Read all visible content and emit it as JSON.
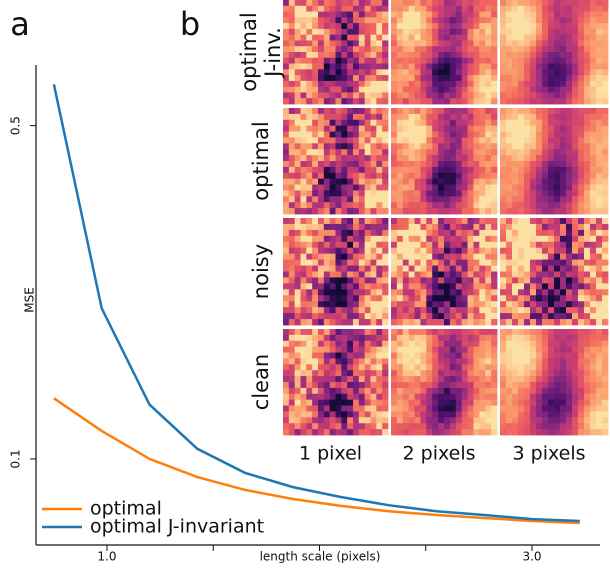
{
  "panel_labels": [
    "a",
    "b"
  ],
  "chart_data": {
    "type": "line",
    "xlabel": "length scale (pixels)",
    "ylabel": "MSE",
    "x": [
      0.75,
      0.975,
      1.2,
      1.425,
      1.65,
      1.875,
      2.1,
      2.325,
      2.55,
      2.775,
      3.0,
      3.225
    ],
    "series": [
      {
        "name": "optimal",
        "color": "#ff7f0e",
        "values": [
          0.134,
          0.1145,
          0.1,
          0.0916,
          0.0861,
          0.0824,
          0.0797,
          0.0777,
          0.0763,
          0.0752,
          0.0741,
          0.0734
        ]
      },
      {
        "name": "optimal J-invariant",
        "color": "#1f77b4",
        "values": [
          0.61,
          0.207,
          0.13,
          0.105,
          0.0935,
          0.0873,
          0.0832,
          0.08,
          0.0777,
          0.0763,
          0.0748,
          0.0741
        ]
      }
    ],
    "xlim": [
      0.666,
      3.32
    ],
    "ylim": [
      0.066,
      0.67
    ],
    "log_y": true,
    "xticks": [
      {
        "value": 1.0,
        "label": "1.0"
      },
      {
        "value": 3.0,
        "label": "3.0"
      }
    ],
    "xminor": [
      1.5,
      2.0,
      2.5
    ],
    "yticks": [
      0.1,
      0.5
    ],
    "grid": false,
    "legend": "lower left"
  },
  "image_grid": {
    "rows": [
      [
        "optimal",
        "J-inv."
      ],
      [
        "optimal"
      ],
      [
        "noisy"
      ],
      [
        "clean"
      ]
    ],
    "columns": [
      "1 pixel",
      "2 pixels",
      "3 pixels"
    ]
  }
}
